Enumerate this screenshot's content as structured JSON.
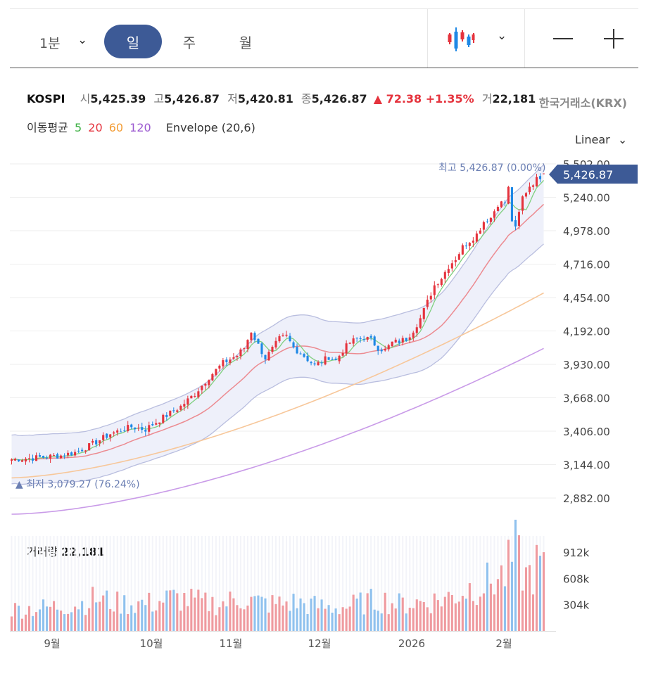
{
  "toolbar": {
    "timeframe": "1분",
    "tabs": [
      "일",
      "주",
      "월"
    ],
    "active_tab": "일"
  },
  "info": {
    "symbol": "KOSPI",
    "open_label": "시",
    "open": "5,425.39",
    "high_label": "고",
    "high": "5,426.87",
    "low_label": "저",
    "low": "5,420.81",
    "close_label": "종",
    "close": "5,426.87",
    "change": "▲ 72.38 +1.35%",
    "volume_label": "거",
    "volume": "22,181",
    "exchange": "한국거래소(KRX)"
  },
  "indicators": {
    "ma_label": "이동평균",
    "periods": [
      "5",
      "20",
      "60",
      "120"
    ],
    "period_colors": [
      "#3cb043",
      "#e5333d",
      "#f39c34",
      "#9b59d0"
    ],
    "envelope": "Envelope (20,6)"
  },
  "scale": "Linear",
  "colors": {
    "up": "#e5333d",
    "down": "#1e88e5",
    "accent": "#3d5a96"
  },
  "chart_data": {
    "type": "candlestick",
    "y_ticks": [
      "5,502.00",
      "5,240.00",
      "4,978.00",
      "4,716.00",
      "4,454.00",
      "4,192.00",
      "3,930.00",
      "3,668.00",
      "3,406.00",
      "3,144.00",
      "2,882.00"
    ],
    "ylim": [
      2882,
      5502
    ],
    "x_ticks": [
      "9월",
      "10월",
      "11월",
      "12월",
      "2026",
      "2월"
    ],
    "last_price": "5,426.87",
    "high_annotation": "최고 5,426.87 (0.00%)",
    "low_annotation": "▲ 최저 3,079.27 (76.24%)",
    "series": [
      {
        "name": "KOSPI",
        "close_anchors": [
          [
            0,
            3185
          ],
          [
            8,
            3200
          ],
          [
            14,
            3215
          ],
          [
            18,
            3240
          ],
          [
            22,
            3290
          ],
          [
            28,
            3385
          ],
          [
            34,
            3440
          ],
          [
            38,
            3420
          ],
          [
            40,
            3460
          ],
          [
            44,
            3530
          ],
          [
            48,
            3600
          ],
          [
            52,
            3700
          ],
          [
            56,
            3830
          ],
          [
            60,
            3940
          ],
          [
            64,
            4000
          ],
          [
            66,
            4060
          ],
          [
            68,
            4190
          ],
          [
            70,
            4080
          ],
          [
            72,
            3980
          ],
          [
            74,
            4050
          ],
          [
            76,
            4130
          ],
          [
            78,
            4150
          ],
          [
            80,
            4060
          ],
          [
            82,
            4020
          ],
          [
            84,
            3970
          ],
          [
            86,
            3920
          ],
          [
            88,
            3950
          ],
          [
            90,
            3990
          ],
          [
            92,
            3960
          ],
          [
            94,
            4040
          ],
          [
            96,
            4100
          ],
          [
            98,
            4130
          ],
          [
            100,
            4140
          ],
          [
            102,
            4120
          ],
          [
            104,
            4060
          ],
          [
            106,
            4040
          ],
          [
            108,
            4100
          ],
          [
            110,
            4110
          ],
          [
            112,
            4130
          ],
          [
            114,
            4200
          ],
          [
            116,
            4290
          ],
          [
            118,
            4420
          ],
          [
            120,
            4550
          ],
          [
            122,
            4610
          ],
          [
            124,
            4700
          ],
          [
            126,
            4760
          ],
          [
            128,
            4850
          ],
          [
            130,
            4900
          ],
          [
            132,
            4950
          ],
          [
            134,
            5050
          ],
          [
            136,
            5080
          ],
          [
            138,
            5190
          ],
          [
            140,
            5200
          ],
          [
            141,
            5310
          ],
          [
            142,
            5060
          ],
          [
            143,
            4990
          ],
          [
            145,
            5240
          ],
          [
            147,
            5330
          ],
          [
            149,
            5380
          ],
          [
            151,
            5427
          ]
        ]
      }
    ],
    "volume": {
      "title": "거래량",
      "value": "22,181",
      "y_ticks": [
        "912k",
        "608k",
        "304k"
      ],
      "ylim": [
        0,
        1100000
      ],
      "anchors": [
        [
          0,
          250000
        ],
        [
          10,
          270000
        ],
        [
          20,
          320000
        ],
        [
          24,
          380000
        ],
        [
          30,
          320000
        ],
        [
          40,
          320000
        ],
        [
          45,
          380000
        ],
        [
          50,
          360000
        ],
        [
          55,
          320000
        ],
        [
          60,
          320000
        ],
        [
          65,
          380000
        ],
        [
          70,
          330000
        ],
        [
          75,
          310000
        ],
        [
          80,
          330000
        ],
        [
          85,
          300000
        ],
        [
          90,
          270000
        ],
        [
          95,
          280000
        ],
        [
          100,
          330000
        ],
        [
          105,
          360000
        ],
        [
          110,
          310000
        ],
        [
          115,
          330000
        ],
        [
          120,
          350000
        ],
        [
          125,
          400000
        ],
        [
          130,
          500000
        ],
        [
          135,
          560000
        ],
        [
          140,
          650000
        ],
        [
          143,
          900000
        ],
        [
          146,
          620000
        ],
        [
          149,
          740000
        ],
        [
          151,
          760000
        ]
      ]
    }
  }
}
